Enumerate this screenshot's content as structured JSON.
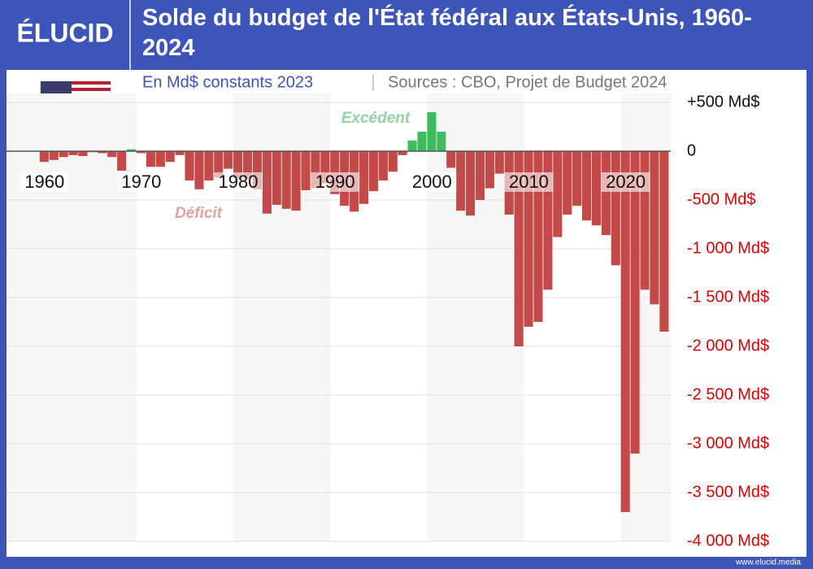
{
  "brand": {
    "logo": "ÉLUCID",
    "url": "www.elucid.media"
  },
  "chart_data": {
    "type": "bar",
    "title": "Solde du budget de l'État fédéral aux États-Unis, 1960-2024",
    "subtitle": "En Md$ constants 2023",
    "source": "Sources : CBO, Projet de Budget 2024",
    "annotations": {
      "positive": "Excédent",
      "negative": "Déficit"
    },
    "x": [
      1960,
      1961,
      1962,
      1963,
      1964,
      1965,
      1966,
      1967,
      1968,
      1969,
      1970,
      1971,
      1972,
      1973,
      1974,
      1975,
      1976,
      1977,
      1978,
      1979,
      1980,
      1981,
      1982,
      1983,
      1984,
      1985,
      1986,
      1987,
      1988,
      1989,
      1990,
      1991,
      1992,
      1993,
      1994,
      1995,
      1996,
      1997,
      1998,
      1999,
      2000,
      2001,
      2002,
      2003,
      2004,
      2005,
      2006,
      2007,
      2008,
      2009,
      2010,
      2011,
      2012,
      2013,
      2014,
      2015,
      2016,
      2017,
      2018,
      2019,
      2020,
      2021,
      2022,
      2023,
      2024
    ],
    "values": [
      -110,
      -90,
      -60,
      -40,
      -50,
      -10,
      -20,
      -60,
      -200,
      20,
      -20,
      -160,
      -160,
      -110,
      -40,
      -300,
      -390,
      -300,
      -270,
      -180,
      -280,
      -280,
      -390,
      -640,
      -550,
      -590,
      -610,
      -400,
      -380,
      -330,
      -440,
      -560,
      -620,
      -540,
      -410,
      -300,
      -210,
      -40,
      110,
      200,
      400,
      200,
      -170,
      -610,
      -660,
      -500,
      -380,
      -230,
      -650,
      -2000,
      -1800,
      -1750,
      -1420,
      -880,
      -650,
      -560,
      -710,
      -760,
      -860,
      -1170,
      -3700,
      -3100,
      -1420,
      -1570,
      -1850
    ],
    "colors": {
      "positive": "#3dbd5d",
      "negative": "#c44a4a"
    },
    "xlim": [
      1959.35,
      2024.65
    ],
    "xticks": [
      1960,
      1970,
      1980,
      1990,
      2000,
      2010,
      2020
    ],
    "ylim": [
      -4000,
      500
    ],
    "yticks": [
      {
        "value": 500,
        "label": "+500 Md$"
      },
      0,
      {
        "value": -500,
        "label": "-500 Md$"
      },
      {
        "value": -1000,
        "label": "-1 000 Md$"
      },
      {
        "value": -1500,
        "label": "-1 500 Md$"
      },
      {
        "value": -2000,
        "label": "-2 000 Md$"
      },
      {
        "value": -2500,
        "label": "-2 500 Md$"
      },
      {
        "value": -3000,
        "label": "-3 000 Md$"
      },
      {
        "value": -3500,
        "label": "-3 500 Md$"
      },
      {
        "value": -4000,
        "label": "-4 000 Md$"
      }
    ],
    "grid": true
  }
}
